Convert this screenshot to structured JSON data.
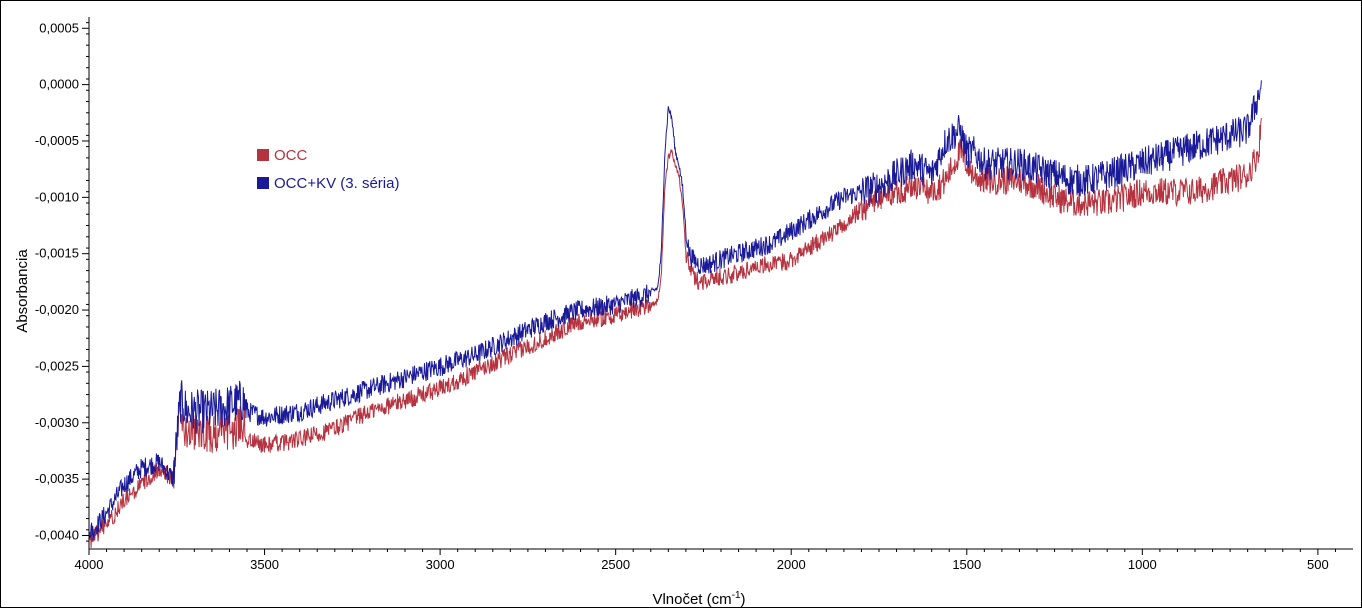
{
  "chart_data": {
    "type": "line",
    "xlabel": "Vlnočet (cm",
    "xlabel_sup": "-1",
    "xlabel_end": ")",
    "ylabel": "Absorbancia",
    "xlim": [
      4000,
      400
    ],
    "ylim": [
      -0.00412,
      0.0006
    ],
    "x_reversed": true,
    "x_ticks": [
      4000,
      3500,
      3000,
      2500,
      2000,
      1500,
      1000,
      500
    ],
    "x_tick_labels": [
      "4000",
      "3500",
      "3000",
      "2500",
      "2000",
      "1500",
      "1000",
      "500"
    ],
    "y_ticks": [
      0.0005,
      0.0,
      -0.0005,
      -0.001,
      -0.0015,
      -0.002,
      -0.0025,
      -0.003,
      -0.0035,
      -0.004
    ],
    "y_tick_labels": [
      "0,0005",
      "0,0000",
      "-0,0005",
      "-0,0010",
      "-0,0015",
      "-0,0020",
      "-0,0025",
      "-0,0030",
      "-0,0035",
      "-0,0040"
    ],
    "grid": false,
    "legend_position": "upper-left",
    "series": [
      {
        "name": "OCC",
        "color": "#b5323f",
        "noise_amplitude": 8e-05,
        "x": [
          4000,
          3950,
          3900,
          3850,
          3800,
          3760,
          3740,
          3720,
          3700,
          3650,
          3600,
          3560,
          3550,
          3500,
          3400,
          3300,
          3200,
          3100,
          3000,
          2900,
          2800,
          2700,
          2600,
          2500,
          2400,
          2380,
          2370,
          2360,
          2350,
          2340,
          2330,
          2320,
          2310,
          2300,
          2290,
          2280,
          2260,
          2240,
          2200,
          2150,
          2100,
          2050,
          2000,
          1950,
          1900,
          1850,
          1800,
          1750,
          1700,
          1650,
          1600,
          1560,
          1520,
          1500,
          1480,
          1450,
          1400,
          1350,
          1300,
          1250,
          1200,
          1150,
          1100,
          1050,
          1000,
          950,
          900,
          850,
          800,
          750,
          700,
          670,
          660
        ],
        "y": [
          -0.00405,
          -0.0039,
          -0.0037,
          -0.00355,
          -0.0034,
          -0.0035,
          -0.0029,
          -0.0031,
          -0.0031,
          -0.0031,
          -0.0031,
          -0.003,
          -0.00315,
          -0.0032,
          -0.00315,
          -0.00305,
          -0.0029,
          -0.0028,
          -0.0027,
          -0.00255,
          -0.0024,
          -0.00225,
          -0.0021,
          -0.00205,
          -0.00195,
          -0.00192,
          -0.0017,
          -0.0009,
          -0.00065,
          -0.0006,
          -0.0007,
          -0.0008,
          -0.00105,
          -0.0015,
          -0.0016,
          -0.0017,
          -0.00175,
          -0.00173,
          -0.0017,
          -0.00168,
          -0.0016,
          -0.0016,
          -0.00155,
          -0.00145,
          -0.00135,
          -0.00125,
          -0.0011,
          -0.001,
          -0.00095,
          -0.0009,
          -0.00095,
          -0.00085,
          -0.0006,
          -0.0007,
          -0.0008,
          -0.00085,
          -0.00085,
          -0.00085,
          -0.0009,
          -0.001,
          -0.00105,
          -0.00105,
          -0.00105,
          -0.001,
          -0.00095,
          -0.00095,
          -0.00095,
          -0.00095,
          -0.0009,
          -0.00085,
          -0.0008,
          -0.0006,
          -0.0003
        ]
      },
      {
        "name": "OCC+KV (3. séria)",
        "color": "#1a1a99",
        "noise_amplitude": 9e-05,
        "x": [
          4000,
          3950,
          3900,
          3850,
          3800,
          3760,
          3740,
          3720,
          3700,
          3650,
          3600,
          3560,
          3550,
          3500,
          3400,
          3300,
          3200,
          3100,
          3000,
          2900,
          2800,
          2700,
          2600,
          2500,
          2400,
          2380,
          2370,
          2360,
          2350,
          2340,
          2330,
          2320,
          2310,
          2300,
          2290,
          2280,
          2260,
          2240,
          2200,
          2150,
          2100,
          2050,
          2000,
          1950,
          1900,
          1850,
          1800,
          1750,
          1700,
          1650,
          1600,
          1560,
          1520,
          1500,
          1480,
          1450,
          1400,
          1350,
          1300,
          1250,
          1200,
          1150,
          1100,
          1050,
          1000,
          950,
          900,
          850,
          800,
          750,
          700,
          670,
          660
        ],
        "y": [
          -0.004,
          -0.0038,
          -0.00355,
          -0.0034,
          -0.00335,
          -0.0035,
          -0.0028,
          -0.0029,
          -0.0029,
          -0.0029,
          -0.00285,
          -0.0028,
          -0.0029,
          -0.00295,
          -0.0029,
          -0.0028,
          -0.0027,
          -0.0026,
          -0.0025,
          -0.0024,
          -0.00225,
          -0.0021,
          -0.002,
          -0.00195,
          -0.00185,
          -0.0018,
          -0.0015,
          -0.0006,
          -0.0002,
          -0.0003,
          -0.0006,
          -0.0007,
          -0.0009,
          -0.0013,
          -0.0015,
          -0.00155,
          -0.0016,
          -0.0016,
          -0.00155,
          -0.0015,
          -0.00145,
          -0.0014,
          -0.0013,
          -0.0012,
          -0.0011,
          -0.001,
          -0.00095,
          -0.0009,
          -0.0008,
          -0.0007,
          -0.0008,
          -0.0005,
          -0.0004,
          -0.0006,
          -0.0006,
          -0.0007,
          -0.0007,
          -0.0007,
          -0.00075,
          -0.0008,
          -0.00085,
          -0.00085,
          -0.0008,
          -0.00075,
          -0.0007,
          -0.00065,
          -0.0006,
          -0.00055,
          -0.0005,
          -0.00045,
          -0.0004,
          -0.0001,
          0.0
        ]
      }
    ]
  }
}
